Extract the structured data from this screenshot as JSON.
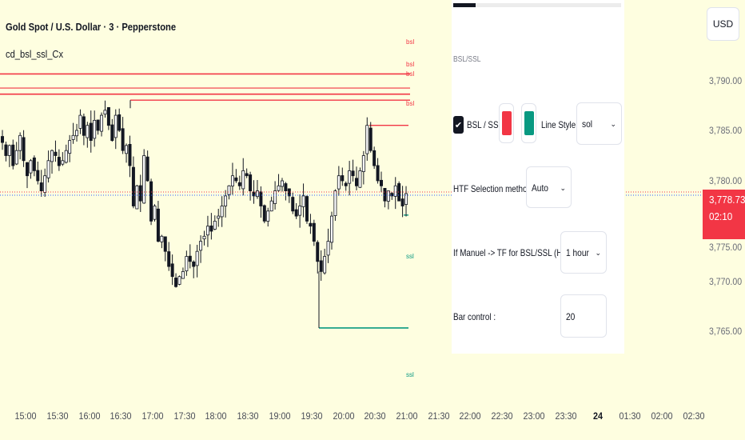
{
  "header": {
    "symbol_title": "Gold Spot / U.S. Dollar · 3 · Pepperstone",
    "indicator_label": "cd_bsl_ssl_Cx"
  },
  "currency_button": "USD",
  "price_axis": {
    "ticks": [
      "3,790.00",
      "3,785.00",
      "3,780.00",
      "3,775.00",
      "3,770.00",
      "3,765.00"
    ],
    "current_price": "3,778.73",
    "countdown": "02:10"
  },
  "time_axis": {
    "ticks": [
      "15:00",
      "15:30",
      "16:00",
      "16:30",
      "17:00",
      "17:30",
      "18:00",
      "18:30",
      "19:00",
      "19:30",
      "20:00",
      "20:30",
      "21:00",
      "21:30",
      "22:00",
      "22:30",
      "23:00",
      "23:30",
      "24",
      "01:30",
      "02:00",
      "02:30"
    ],
    "bold_tick": "24"
  },
  "levels": {
    "bsl_labels": [
      "bsl",
      "bsl",
      "bsl",
      "bsl"
    ],
    "ssl_labels": [
      "ssl",
      "ssl"
    ]
  },
  "settings_panel": {
    "section_title": "BSL/SSL",
    "bsl_ssl_checkbox_label": "BSL / SSL",
    "bsl_ssl_checked": true,
    "bsl_color": "#f23645",
    "ssl_color": "#089981",
    "line_style_label": "Line Style:",
    "line_style_value": "sol",
    "htf_method_label": "HTF Selection method :",
    "htf_method_value": "Auto",
    "manual_tf_label": "If Manuel -> TF for BSL/SSL (HTF):",
    "manual_tf_value": "1 hour",
    "bar_control_label": "Bar control :",
    "bar_control_value": "20"
  },
  "colors": {
    "background": "#fefee0",
    "bsl": "#f23645",
    "ssl": "#089981",
    "candle": "#131722"
  },
  "chart_data": {
    "type": "candlestick",
    "y_range": [
      3762.5,
      3794.2
    ],
    "x_labels": [
      "15:00",
      "15:30",
      "16:00",
      "16:30",
      "17:00",
      "17:30",
      "18:00",
      "18:30",
      "19:00",
      "19:30",
      "20:00",
      "20:30",
      "21:00"
    ],
    "close_path": [
      3783.8,
      3782.5,
      3783.5,
      3781.5,
      3783.0,
      3784.5,
      3782.0,
      3780.5,
      3782.0,
      3781.0,
      3780.0,
      3779.0,
      3780.5,
      3782.0,
      3783.0,
      3782.5,
      3781.5,
      3782.0,
      3783.0,
      3784.0,
      3784.5,
      3785.0,
      3786.5,
      3784.5,
      3785.5,
      3784.0,
      3786.0,
      3785.0,
      3786.5,
      3787.0,
      3785.5,
      3784.0,
      3786.5,
      3785.0,
      3783.0,
      3783.5,
      3781.5,
      3777.5,
      3779.5,
      3778.0,
      3782.5,
      3780.0,
      3776.0,
      3777.5,
      3774.0,
      3774.5,
      3773.0,
      3771.5,
      3770.5,
      3769.5,
      3770.5,
      3771.0,
      3772.5,
      3772.0,
      3771.5,
      3773.0,
      3774.0,
      3774.5,
      3775.5,
      3775.0,
      3776.0,
      3776.5,
      3777.5,
      3778.5,
      3779.5,
      3780.5,
      3780.0,
      3779.5,
      3781.0,
      3780.5,
      3779.0,
      3778.5,
      3779.0,
      3777.5,
      3776.0,
      3777.0,
      3778.0,
      3779.0,
      3779.5,
      3780.0,
      3779.0,
      3778.5,
      3777.0,
      3776.5,
      3777.5,
      3778.5,
      3776.0,
      3775.5,
      3774.0,
      3772.0,
      3771.0,
      3772.5,
      3774.0,
      3776.5,
      3779.0,
      3780.5,
      3780.0,
      3779.5,
      3781.0,
      3780.5,
      3779.5,
      3781.0,
      3782.5,
      3785.5,
      3783.0,
      3781.5,
      3780.0,
      3779.5,
      3778.0,
      3779.0,
      3778.5,
      3779.5,
      3778.0,
      3777.5,
      3778.73
    ],
    "bsl_levels": [
      3790.6,
      3789.2,
      3788.6,
      3788.0,
      3785.5
    ],
    "ssl_levels": [
      3776.6,
      3765.4
    ],
    "current_price_line": 3778.73
  }
}
